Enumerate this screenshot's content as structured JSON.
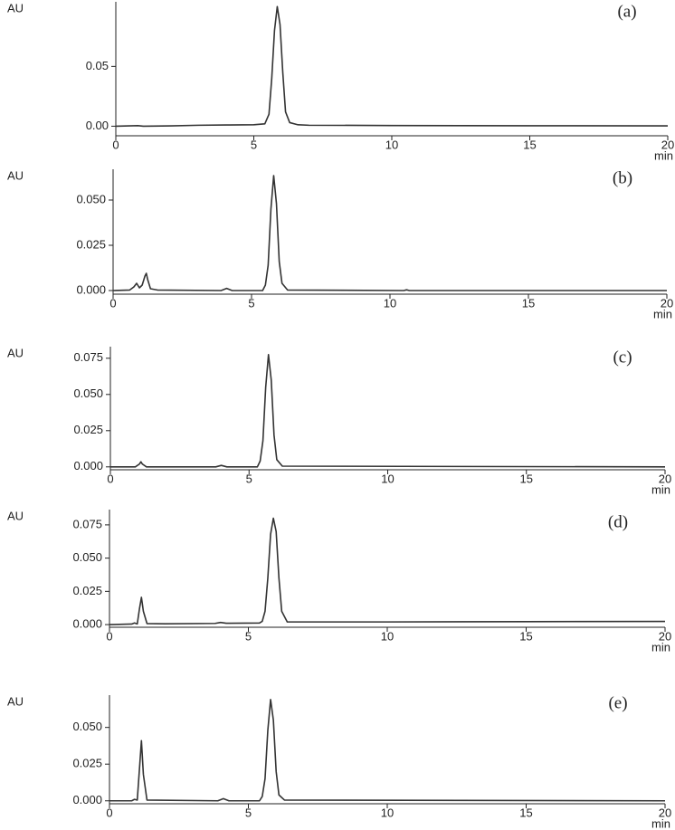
{
  "chart_data": [
    {
      "type": "line",
      "annotation": "(a)",
      "ylabel": "AU",
      "xlabel": "min",
      "color": "#333333",
      "xlim": [
        0,
        20
      ],
      "xticks": [
        0,
        5,
        10,
        15,
        20
      ],
      "ylim": [
        -0.008,
        0.104
      ],
      "yticks": [
        {
          "value": 0,
          "label": "0.00"
        },
        0.05
      ],
      "x": [
        0,
        0.8,
        1,
        2,
        3,
        4,
        5,
        5.4,
        5.55,
        5.65,
        5.75,
        5.85,
        5.95,
        6.05,
        6.15,
        6.3,
        6.6,
        7,
        10,
        15,
        20
      ],
      "values": [
        0,
        0.0005,
        0,
        0.0003,
        0.0008,
        0.001,
        0.0012,
        0.002,
        0.01,
        0.04,
        0.08,
        0.1,
        0.085,
        0.045,
        0.012,
        0.003,
        0.0012,
        0.0008,
        0.0006,
        0.0004,
        0.0003
      ]
    },
    {
      "type": "line",
      "annotation": "(b)",
      "ylabel": "AU",
      "xlabel": "min",
      "color": "#333333",
      "xlim": [
        0,
        20
      ],
      "xticks": [
        0,
        5,
        10,
        15,
        20
      ],
      "ylim": [
        -0.002,
        0.067
      ],
      "yticks": [
        {
          "value": 0,
          "label": "0.000"
        },
        0.025,
        {
          "value": 0.05,
          "label": "0.050"
        }
      ],
      "x": [
        0,
        0.6,
        0.75,
        0.85,
        0.95,
        1.05,
        1.15,
        1.2,
        1.25,
        1.35,
        1.6,
        3.9,
        4.1,
        4.3,
        5.4,
        5.5,
        5.6,
        5.7,
        5.8,
        5.9,
        6.0,
        6.1,
        6.3,
        10.5,
        10.6,
        10.7,
        20
      ],
      "values": [
        0,
        0.0003,
        0.002,
        0.004,
        0.0015,
        0.003,
        0.008,
        0.0095,
        0.006,
        0.001,
        0.0003,
        0,
        0.0012,
        0,
        0,
        0.003,
        0.014,
        0.045,
        0.0635,
        0.048,
        0.016,
        0.004,
        0.0003,
        0,
        0.0004,
        0,
        0
      ]
    },
    {
      "type": "line",
      "annotation": "(c)",
      "ylabel": "AU",
      "xlabel": "min",
      "color": "#333333",
      "xlim": [
        0,
        20
      ],
      "xticks": [
        0,
        5,
        10,
        15,
        20
      ],
      "ylim": [
        -0.002,
        0.083
      ],
      "yticks": [
        {
          "value": 0,
          "label": "0.000"
        },
        0.025,
        {
          "value": 0.05,
          "label": "0.050"
        },
        0.075
      ],
      "x": [
        0,
        0.9,
        1.05,
        1.1,
        1.15,
        1.3,
        3.8,
        4.0,
        4.2,
        5.3,
        5.4,
        5.5,
        5.6,
        5.7,
        5.8,
        5.9,
        6.0,
        6.2,
        20
      ],
      "values": [
        0,
        0,
        0.002,
        0.0035,
        0.002,
        0,
        0,
        0.001,
        0,
        0,
        0.004,
        0.018,
        0.055,
        0.0775,
        0.06,
        0.022,
        0.005,
        0.0005,
        0
      ]
    },
    {
      "type": "line",
      "annotation": "(d)",
      "ylabel": "AU",
      "xlabel": "min",
      "color": "#333333",
      "xlim": [
        0,
        20
      ],
      "xticks": [
        0,
        5,
        10,
        15,
        20
      ],
      "ylim": [
        -0.002,
        0.0865
      ],
      "yticks": [
        {
          "value": 0,
          "label": "0.000"
        },
        0.025,
        {
          "value": 0.05,
          "label": "0.050"
        },
        0.075
      ],
      "x": [
        0,
        0.8,
        0.9,
        1.0,
        1.08,
        1.15,
        1.22,
        1.35,
        2,
        3.8,
        4.0,
        4.2,
        5.4,
        5.5,
        5.6,
        5.7,
        5.8,
        5.9,
        6.0,
        6.1,
        6.2,
        6.4,
        10,
        15,
        20
      ],
      "values": [
        0,
        0.0004,
        0.0012,
        0.0005,
        0.012,
        0.0205,
        0.01,
        0.0008,
        0.0006,
        0.0009,
        0.0016,
        0.001,
        0.0012,
        0.0025,
        0.01,
        0.035,
        0.068,
        0.08,
        0.07,
        0.035,
        0.01,
        0.002,
        0.002,
        0.0022,
        0.0024
      ]
    },
    {
      "type": "line",
      "annotation": "(e)",
      "ylabel": "AU",
      "xlabel": "min",
      "color": "#333333",
      "xlim": [
        0,
        20
      ],
      "xticks": [
        0,
        5,
        10,
        15,
        20
      ],
      "ylim": [
        -0.002,
        0.072
      ],
      "yticks": [
        {
          "value": 0,
          "label": "0.000"
        },
        0.025,
        {
          "value": 0.05,
          "label": "0.050"
        }
      ],
      "x": [
        0,
        0.8,
        0.9,
        1.0,
        1.08,
        1.15,
        1.22,
        1.35,
        3.9,
        4.1,
        4.3,
        5.4,
        5.5,
        5.6,
        5.7,
        5.8,
        5.9,
        6.0,
        6.1,
        6.3,
        20
      ],
      "values": [
        0,
        0,
        0.001,
        0.0005,
        0.022,
        0.041,
        0.018,
        0.0005,
        0,
        0.0015,
        0,
        0,
        0.003,
        0.015,
        0.048,
        0.069,
        0.055,
        0.02,
        0.004,
        0.0005,
        0
      ]
    }
  ]
}
